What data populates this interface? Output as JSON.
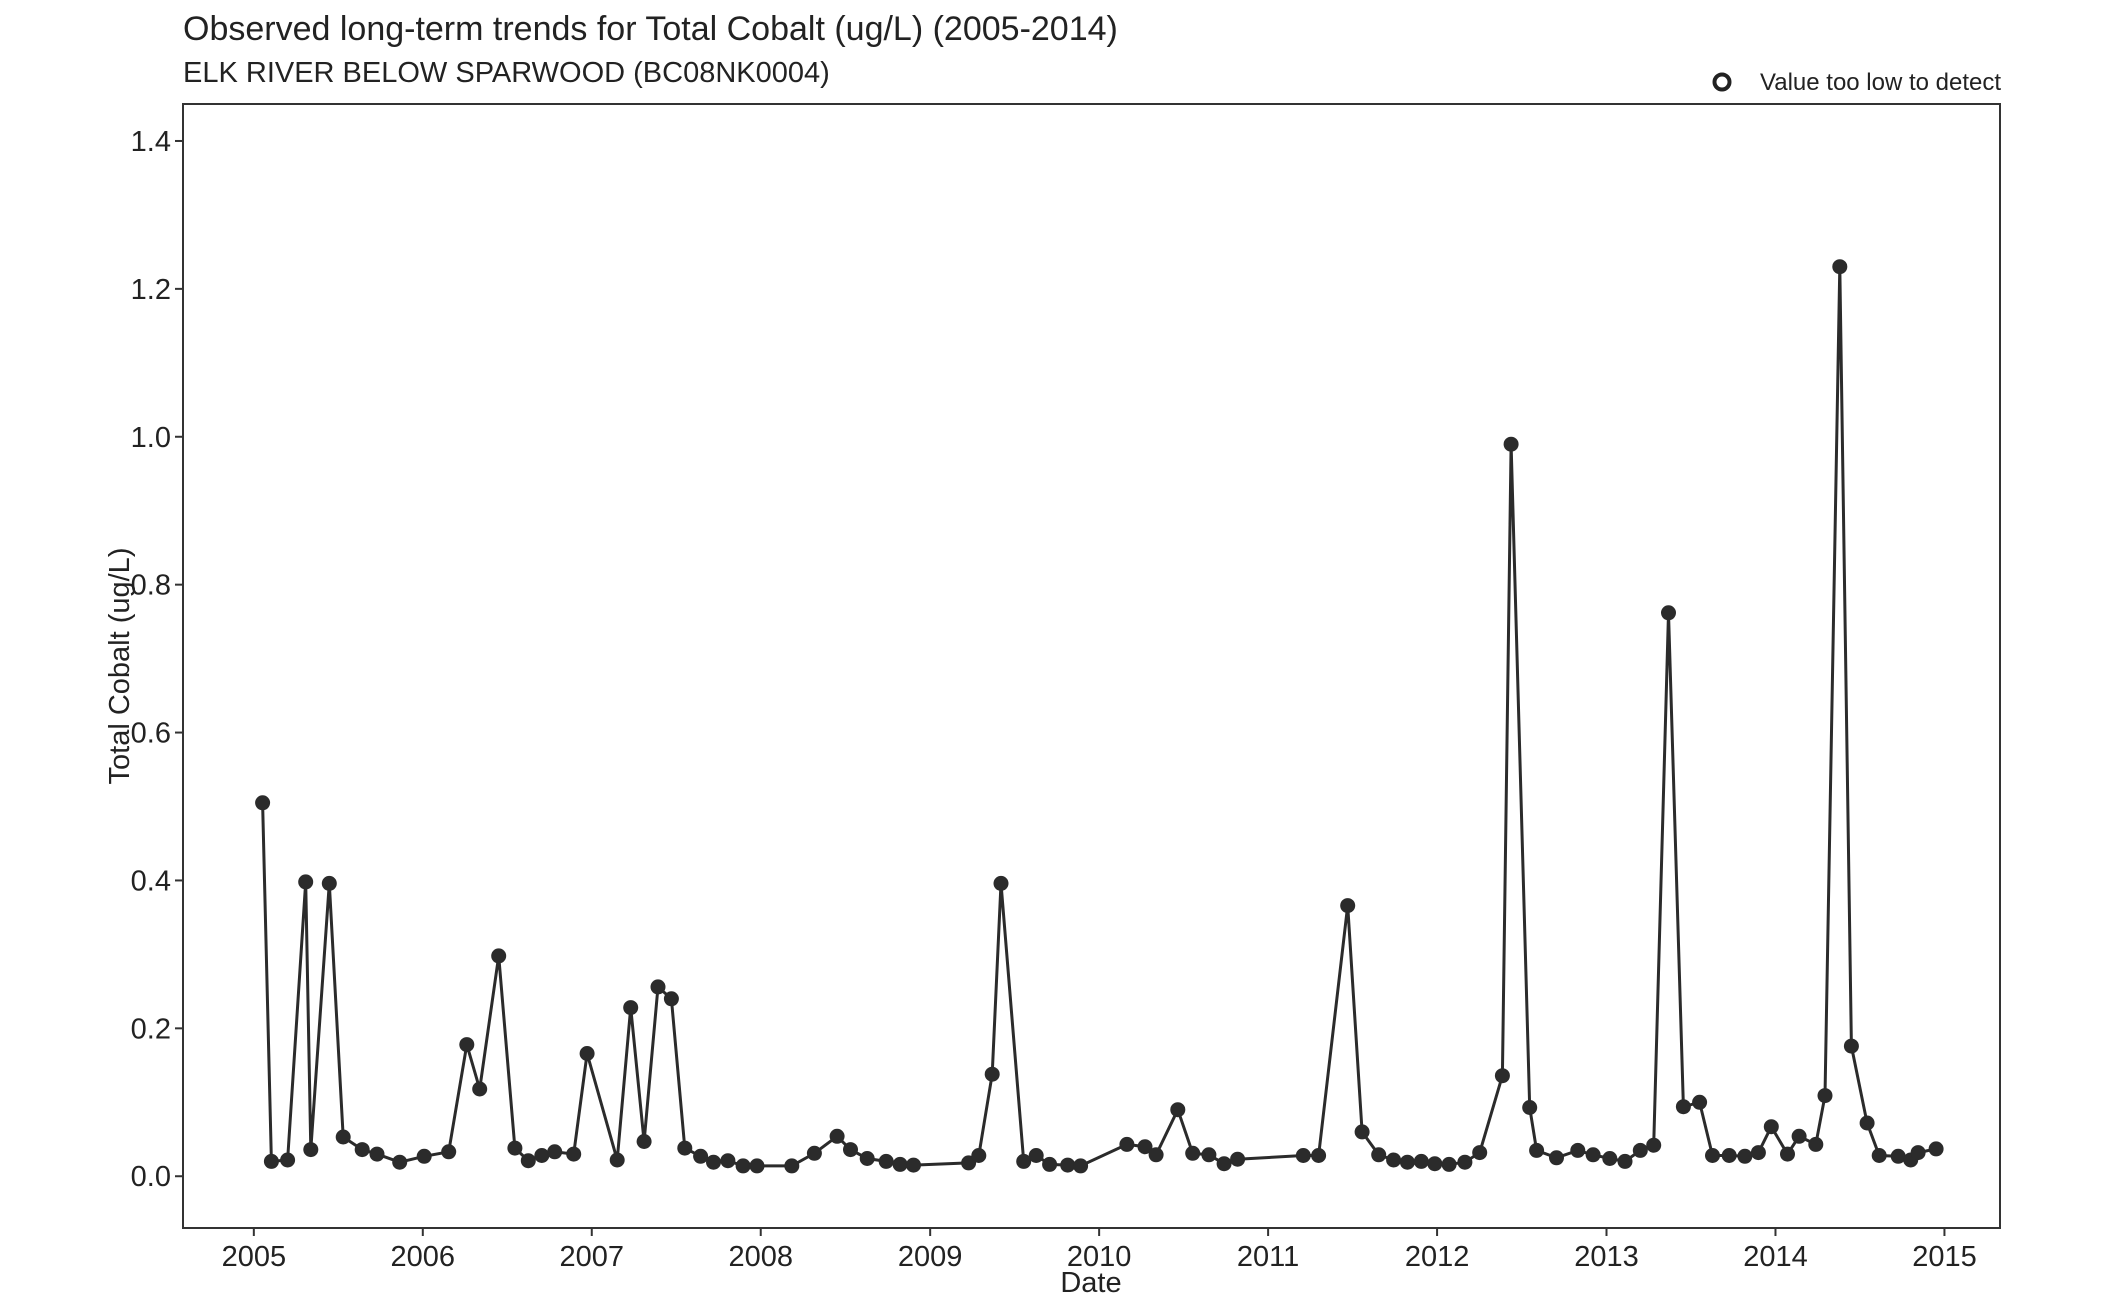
{
  "chart_data": {
    "type": "scatter",
    "title": "Observed long-term trends for Total Cobalt (ug/L) (2005-2014)",
    "subtitle": "ELK RIVER BELOW SPARWOOD (BC08NK0004)",
    "xlabel": "Date",
    "ylabel": "Total Cobalt (ug/L)",
    "xlim": [
      "2004-08-01",
      "2015-05-01"
    ],
    "ylim": [
      -0.07,
      1.45
    ],
    "x_ticks": [
      "2005",
      "2006",
      "2007",
      "2008",
      "2009",
      "2010",
      "2011",
      "2012",
      "2013",
      "2014",
      "2015"
    ],
    "y_ticks": [
      "0.0",
      "0.2",
      "0.4",
      "0.6",
      "0.8",
      "1.0",
      "1.2",
      "1.4"
    ],
    "legend": {
      "position": "top-right",
      "label": "Value too low to detect",
      "marker": "open-circle"
    },
    "grid": false,
    "line_color": "#2b2b2b",
    "series": [
      {
        "points": [
          [
            "2005-01-20",
            0.505
          ],
          [
            "2005-02-08",
            0.02
          ],
          [
            "2005-03-15",
            0.022
          ],
          [
            "2005-04-23",
            0.398
          ],
          [
            "2005-05-04",
            0.036
          ],
          [
            "2005-06-13",
            0.396
          ],
          [
            "2005-07-13",
            0.053
          ],
          [
            "2005-08-23",
            0.036
          ],
          [
            "2005-09-24",
            0.03
          ],
          [
            "2005-11-12",
            0.019
          ],
          [
            "2006-01-04",
            0.027
          ],
          [
            "2006-02-26",
            0.033
          ],
          [
            "2006-04-06",
            0.178
          ],
          [
            "2006-05-04",
            0.118
          ],
          [
            "2006-06-14",
            0.298
          ],
          [
            "2006-07-19",
            0.038
          ],
          [
            "2006-08-17",
            0.021
          ],
          [
            "2006-09-15",
            0.028
          ],
          [
            "2006-10-13",
            0.033
          ],
          [
            "2006-11-23",
            0.03
          ],
          [
            "2006-12-22",
            0.166
          ],
          [
            "2007-02-25",
            0.022
          ],
          [
            "2007-03-26",
            0.228
          ],
          [
            "2007-04-24",
            0.047
          ],
          [
            "2007-05-24",
            0.256
          ],
          [
            "2007-06-22",
            0.24
          ],
          [
            "2007-07-21",
            0.038
          ],
          [
            "2007-08-24",
            0.027
          ],
          [
            "2007-09-21",
            0.019
          ],
          [
            "2007-10-22",
            0.021
          ],
          [
            "2007-11-24",
            0.014
          ],
          [
            "2007-12-24",
            0.014
          ],
          [
            "2008-03-08",
            0.014
          ],
          [
            "2008-04-26",
            0.031
          ],
          [
            "2008-06-14",
            0.054
          ],
          [
            "2008-07-13",
            0.036
          ],
          [
            "2008-08-18",
            0.024
          ],
          [
            "2008-09-28",
            0.02
          ],
          [
            "2008-10-28",
            0.016
          ],
          [
            "2008-11-26",
            0.015
          ],
          [
            "2009-03-25",
            0.018
          ],
          [
            "2009-04-16",
            0.028
          ],
          [
            "2009-05-15",
            0.138
          ],
          [
            "2009-06-03",
            0.396
          ],
          [
            "2009-07-22",
            0.02
          ],
          [
            "2009-08-18",
            0.028
          ],
          [
            "2009-09-16",
            0.016
          ],
          [
            "2009-10-25",
            0.015
          ],
          [
            "2009-11-22",
            0.014
          ],
          [
            "2010-03-02",
            0.043
          ],
          [
            "2010-04-10",
            0.04
          ],
          [
            "2010-05-04",
            0.029
          ],
          [
            "2010-06-20",
            0.09
          ],
          [
            "2010-07-22",
            0.031
          ],
          [
            "2010-08-26",
            0.029
          ],
          [
            "2010-09-28",
            0.017
          ],
          [
            "2010-10-27",
            0.023
          ],
          [
            "2011-03-18",
            0.028
          ],
          [
            "2011-04-20",
            0.028
          ],
          [
            "2011-06-22",
            0.366
          ],
          [
            "2011-07-23",
            0.06
          ],
          [
            "2011-08-28",
            0.029
          ],
          [
            "2011-09-29",
            0.022
          ],
          [
            "2011-10-29",
            0.019
          ],
          [
            "2011-11-28",
            0.02
          ],
          [
            "2011-12-27",
            0.017
          ],
          [
            "2012-01-27",
            0.016
          ],
          [
            "2012-03-01",
            0.019
          ],
          [
            "2012-04-02",
            0.032
          ],
          [
            "2012-05-21",
            0.136
          ],
          [
            "2012-06-09",
            0.99
          ],
          [
            "2012-07-19",
            0.093
          ],
          [
            "2012-08-03",
            0.035
          ],
          [
            "2012-09-15",
            0.025
          ],
          [
            "2012-10-31",
            0.035
          ],
          [
            "2012-12-03",
            0.029
          ],
          [
            "2013-01-08",
            0.024
          ],
          [
            "2013-02-10",
            0.02
          ],
          [
            "2013-03-15",
            0.035
          ],
          [
            "2013-04-13",
            0.042
          ],
          [
            "2013-05-15",
            0.762
          ],
          [
            "2013-06-16",
            0.094
          ],
          [
            "2013-07-21",
            0.1
          ],
          [
            "2013-08-18",
            0.028
          ],
          [
            "2013-09-23",
            0.028
          ],
          [
            "2013-10-27",
            0.027
          ],
          [
            "2013-11-25",
            0.032
          ],
          [
            "2013-12-23",
            0.067
          ],
          [
            "2014-01-27",
            0.03
          ],
          [
            "2014-02-21",
            0.054
          ],
          [
            "2014-03-29",
            0.043
          ],
          [
            "2014-04-18",
            0.109
          ],
          [
            "2014-05-20",
            1.23
          ],
          [
            "2014-06-14",
            0.176
          ],
          [
            "2014-07-18",
            0.072
          ],
          [
            "2014-08-13",
            0.028
          ],
          [
            "2014-09-23",
            0.027
          ],
          [
            "2014-10-20",
            0.022
          ],
          [
            "2014-11-05",
            0.032
          ],
          [
            "2014-12-14",
            0.037
          ]
        ]
      }
    ]
  }
}
